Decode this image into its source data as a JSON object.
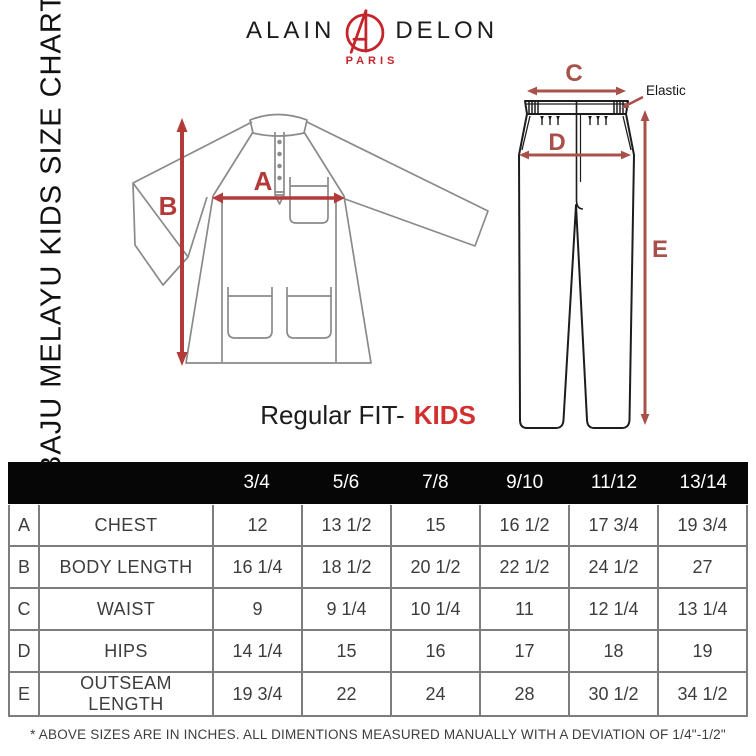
{
  "page": {
    "side_title": "BAJU MELAYU KIDS SIZE CHART",
    "fit_prefix": "Regular FIT-",
    "fit_highlight": "KIDS",
    "footnote": "* ABOVE SIZES ARE IN INCHES. ALL DIMENTIONS MEASURED MANUALLY WITH A DEVIATION OF 1/4\"-1/2\""
  },
  "brand": {
    "word_left": "ALAIN",
    "word_right": "DELON",
    "city": "PARIS",
    "monogram": "AD",
    "accent_color": "#c5242b"
  },
  "diagram": {
    "arrow_color_shirt": "#b23a38",
    "arrow_color_pants": "#a8504a",
    "labels": {
      "chest": "A",
      "body_length": "B",
      "waist": "C",
      "hips": "D",
      "outseam": "E"
    },
    "elastic_note": "Elastic"
  },
  "chart_data": {
    "type": "table",
    "title": "BAJU MELAYU KIDS SIZE CHART",
    "unit": "inches",
    "fit": "Regular FIT - KIDS",
    "columns": [
      "3/4",
      "5/6",
      "7/8",
      "9/10",
      "11/12",
      "13/14"
    ],
    "rows": [
      {
        "key": "A",
        "label": "CHEST",
        "values": [
          "12",
          "13 1/2",
          "15",
          "16 1/2",
          "17 3/4",
          "19 3/4"
        ]
      },
      {
        "key": "B",
        "label": "BODY LENGTH",
        "values": [
          "16 1/4",
          "18 1/2",
          "20 1/2",
          "22 1/2",
          "24 1/2",
          "27"
        ]
      },
      {
        "key": "C",
        "label": "WAIST",
        "values": [
          "9",
          "9 1/4",
          "10 1/4",
          "11",
          "12 1/4",
          "13 1/4"
        ]
      },
      {
        "key": "D",
        "label": "HIPS",
        "values": [
          "14 1/4",
          "15",
          "16",
          "17",
          "18",
          "19"
        ]
      },
      {
        "key": "E",
        "label": "OUTSEAM LENGTH",
        "values": [
          "19 3/4",
          "22",
          "24",
          "28",
          "30 1/2",
          "34 1/2"
        ]
      }
    ]
  }
}
